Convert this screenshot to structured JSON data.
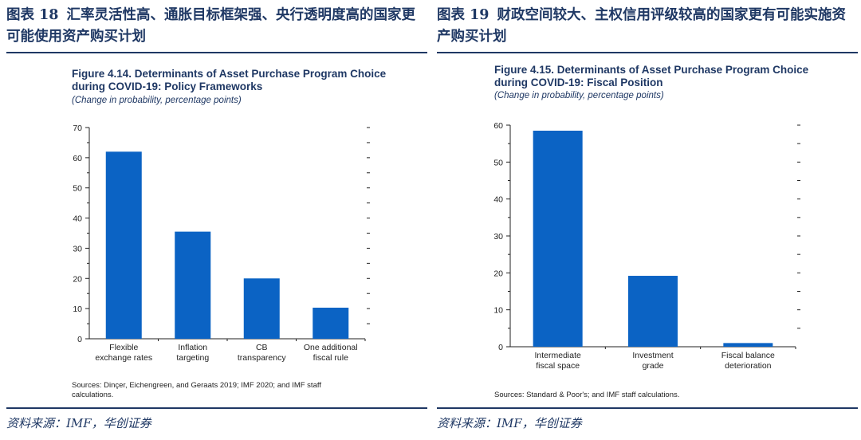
{
  "left": {
    "report_fig_no": "图表 18",
    "report_title": "汇率灵活性高、通胀目标框架强、央行透明度高的国家更可能使用资产购买计划",
    "imf_title_line1": "Figure 4.14.  Determinants of Asset Purchase Program Choice",
    "imf_title_line2": "during COVID-19: Policy Frameworks",
    "imf_subtitle": "(Change in probability, percentage points)",
    "imf_note_line1": "Sources: Dinçer, Eichengreen, and Geraats 2019; IMF 2020; and IMF staff",
    "imf_note_line2": "calculations.",
    "source": "资料来源：IMF，华创证券"
  },
  "right": {
    "report_fig_no": "图表 19",
    "report_title": "财政空间较大、主权信用评级较高的国家更有可能实施资产购买计划",
    "imf_title_line1": "Figure 4.15.  Determinants of Asset Purchase Program Choice",
    "imf_title_line2": "during COVID-19: Fiscal Position",
    "imf_subtitle": "(Change in probability, percentage points)",
    "imf_note_line1": "Sources: Standard & Poor's; and IMF staff calculations.",
    "source": "资料来源：IMF，华创证券"
  },
  "colors": {
    "bar": "#0b63c4",
    "heading": "#1f3864",
    "axis": "#222222"
  },
  "chart_data": [
    {
      "type": "bar",
      "title": "Figure 4.14.  Determinants of Asset Purchase Program Choice during COVID-19: Policy Frameworks",
      "subtitle": "(Change in probability, percentage points)",
      "categories": [
        [
          "Flexible",
          "exchange rates"
        ],
        [
          "Inflation",
          "targeting"
        ],
        [
          "CB",
          "transparency"
        ],
        [
          "One additional",
          "fiscal rule"
        ]
      ],
      "values": [
        62,
        35.5,
        20,
        10.3
      ],
      "ylim": [
        0,
        70
      ],
      "yticks": [
        0,
        10,
        20,
        30,
        40,
        50,
        60,
        70
      ],
      "minor_step": 5,
      "grid": false
    },
    {
      "type": "bar",
      "title": "Figure 4.15.  Determinants of Asset Purchase Program Choice during COVID-19: Fiscal Position",
      "subtitle": "(Change in probability, percentage points)",
      "categories": [
        [
          "Intermediate",
          "fiscal space"
        ],
        [
          "Investment",
          "grade"
        ],
        [
          "Fiscal balance",
          "deterioration"
        ]
      ],
      "values": [
        58.5,
        19.2,
        1
      ],
      "ylim": [
        0,
        60
      ],
      "yticks": [
        0,
        10,
        20,
        30,
        40,
        50,
        60
      ],
      "minor_step": 5,
      "grid": false
    }
  ]
}
